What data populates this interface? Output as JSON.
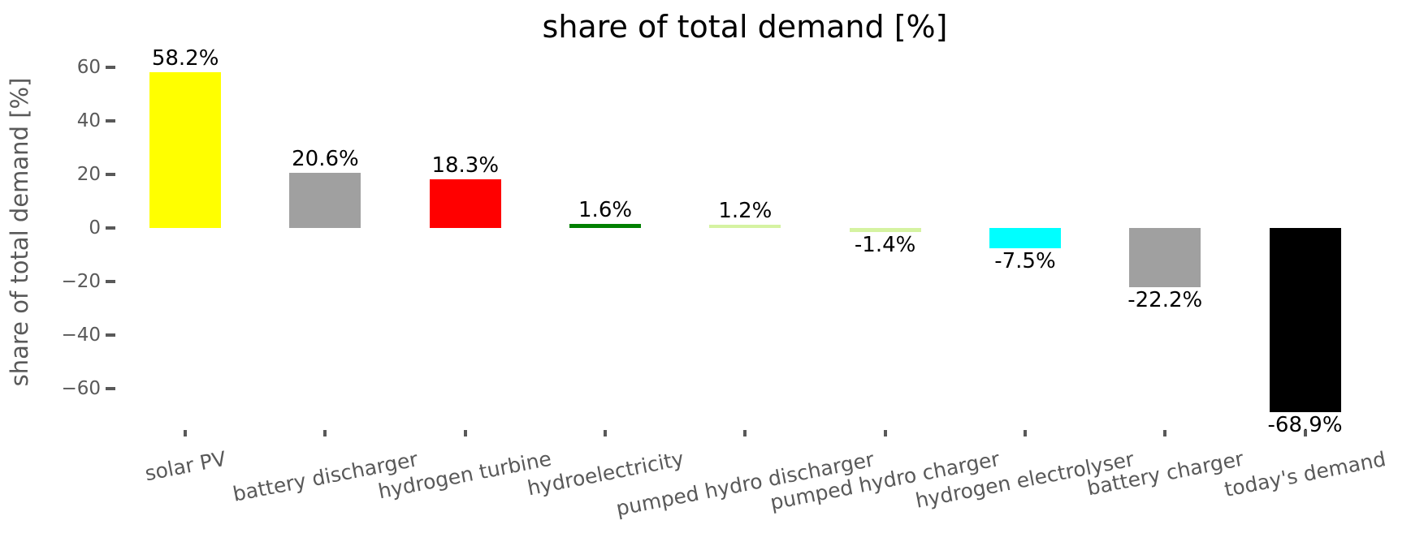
{
  "chart_data": {
    "type": "bar",
    "title": "share of total demand [%]",
    "ylabel": "share of total demand [%]",
    "categories": [
      "solar PV",
      "battery discharger",
      "hydrogen turbine",
      "hydroelectricity",
      "pumped hydro discharger",
      "pumped hydro charger",
      "hydrogen electrolyser",
      "battery charger",
      "today's demand"
    ],
    "values": [
      58.2,
      20.6,
      18.3,
      1.6,
      1.2,
      -1.4,
      -7.5,
      -22.2,
      -68.9
    ],
    "value_labels": [
      "58.2%",
      "20.6%",
      "18.3%",
      "1.6%",
      "1.2%",
      "-1.4%",
      "-7.5%",
      "-22.2%",
      "-68.9%"
    ],
    "bar_colors": [
      "#ffff00",
      "#a0a0a0",
      "#ff0000",
      "#008000",
      "#d5f3a1",
      "#d5f3a1",
      "#00ffff",
      "#a0a0a0",
      "#000000"
    ],
    "yticks": {
      "values": [
        60,
        40,
        20,
        0,
        -20,
        -40,
        -60
      ],
      "labels": [
        "60",
        "40",
        "20",
        "0",
        "−20",
        "−40",
        "−60"
      ]
    },
    "ylim": [
      -75.4,
      63.7
    ],
    "grid": false,
    "legend": null,
    "xlabel": "",
    "tick_color": "#595959",
    "value_label_color": "#000000",
    "title_color": "#000000",
    "background_color": "#ffffff"
  }
}
